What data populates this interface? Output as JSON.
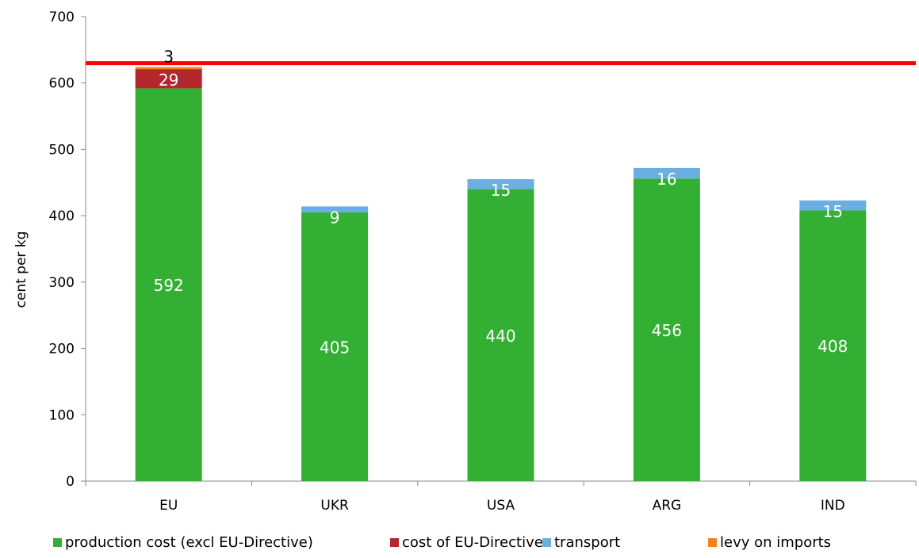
{
  "chart_data": {
    "type": "bar",
    "stacked": true,
    "ylabel": "cent per kg",
    "ylim": [
      0,
      700
    ],
    "yticks": [
      0,
      100,
      200,
      300,
      400,
      500,
      600,
      700
    ],
    "categories": [
      "EU",
      "UKR",
      "USA",
      "ARG",
      "IND"
    ],
    "series": [
      {
        "name": "production cost (excl EU-Directive)",
        "color": "#33B034",
        "values": [
          592,
          405,
          440,
          456,
          408
        ],
        "labels": [
          "592",
          "405",
          "440",
          "456",
          "408"
        ],
        "label_color": "#ffffff"
      },
      {
        "name": "cost of EU-Directive",
        "color": "#B3262C",
        "values": [
          29,
          0,
          0,
          0,
          0
        ],
        "labels": [
          "29",
          "",
          "",
          "",
          ""
        ],
        "label_color": "#ffffff"
      },
      {
        "name": "transport",
        "color": "#6AAEE2",
        "values": [
          0,
          9,
          15,
          16,
          15
        ],
        "labels": [
          "",
          "9",
          "15",
          "16",
          "15"
        ],
        "label_color": "#ffffff"
      },
      {
        "name": "levy on imports",
        "color": "#F58220",
        "values": [
          3,
          0,
          0,
          0,
          0
        ],
        "labels": [
          "3",
          "",
          "",
          "",
          ""
        ],
        "label_color": "#000000"
      }
    ],
    "reference_line": {
      "value": 630,
      "color": "#FF0000"
    },
    "grid": false,
    "legend_position": "bottom"
  }
}
